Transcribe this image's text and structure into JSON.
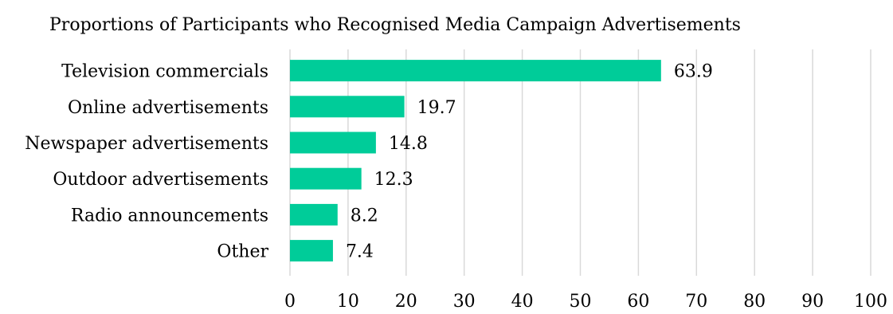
{
  "chart_data": {
    "type": "bar",
    "orientation": "horizontal",
    "title": "Proportions of Participants who Recognised Media Campaign Advertisements",
    "categories": [
      "Television commercials",
      "Online advertisements",
      "Newspaper advertisements",
      "Outdoor advertisements",
      "Radio announcements",
      "Other"
    ],
    "values": [
      63.9,
      19.7,
      14.8,
      12.3,
      8.2,
      7.4
    ],
    "xlim": [
      0,
      100
    ],
    "xticks": [
      0,
      10,
      20,
      30,
      40,
      50,
      60,
      70,
      80,
      90,
      100
    ],
    "grid": true,
    "bar_color": "#00CC99",
    "grid_color": "#D9D9D9",
    "data_labels": true,
    "legend": "none"
  }
}
